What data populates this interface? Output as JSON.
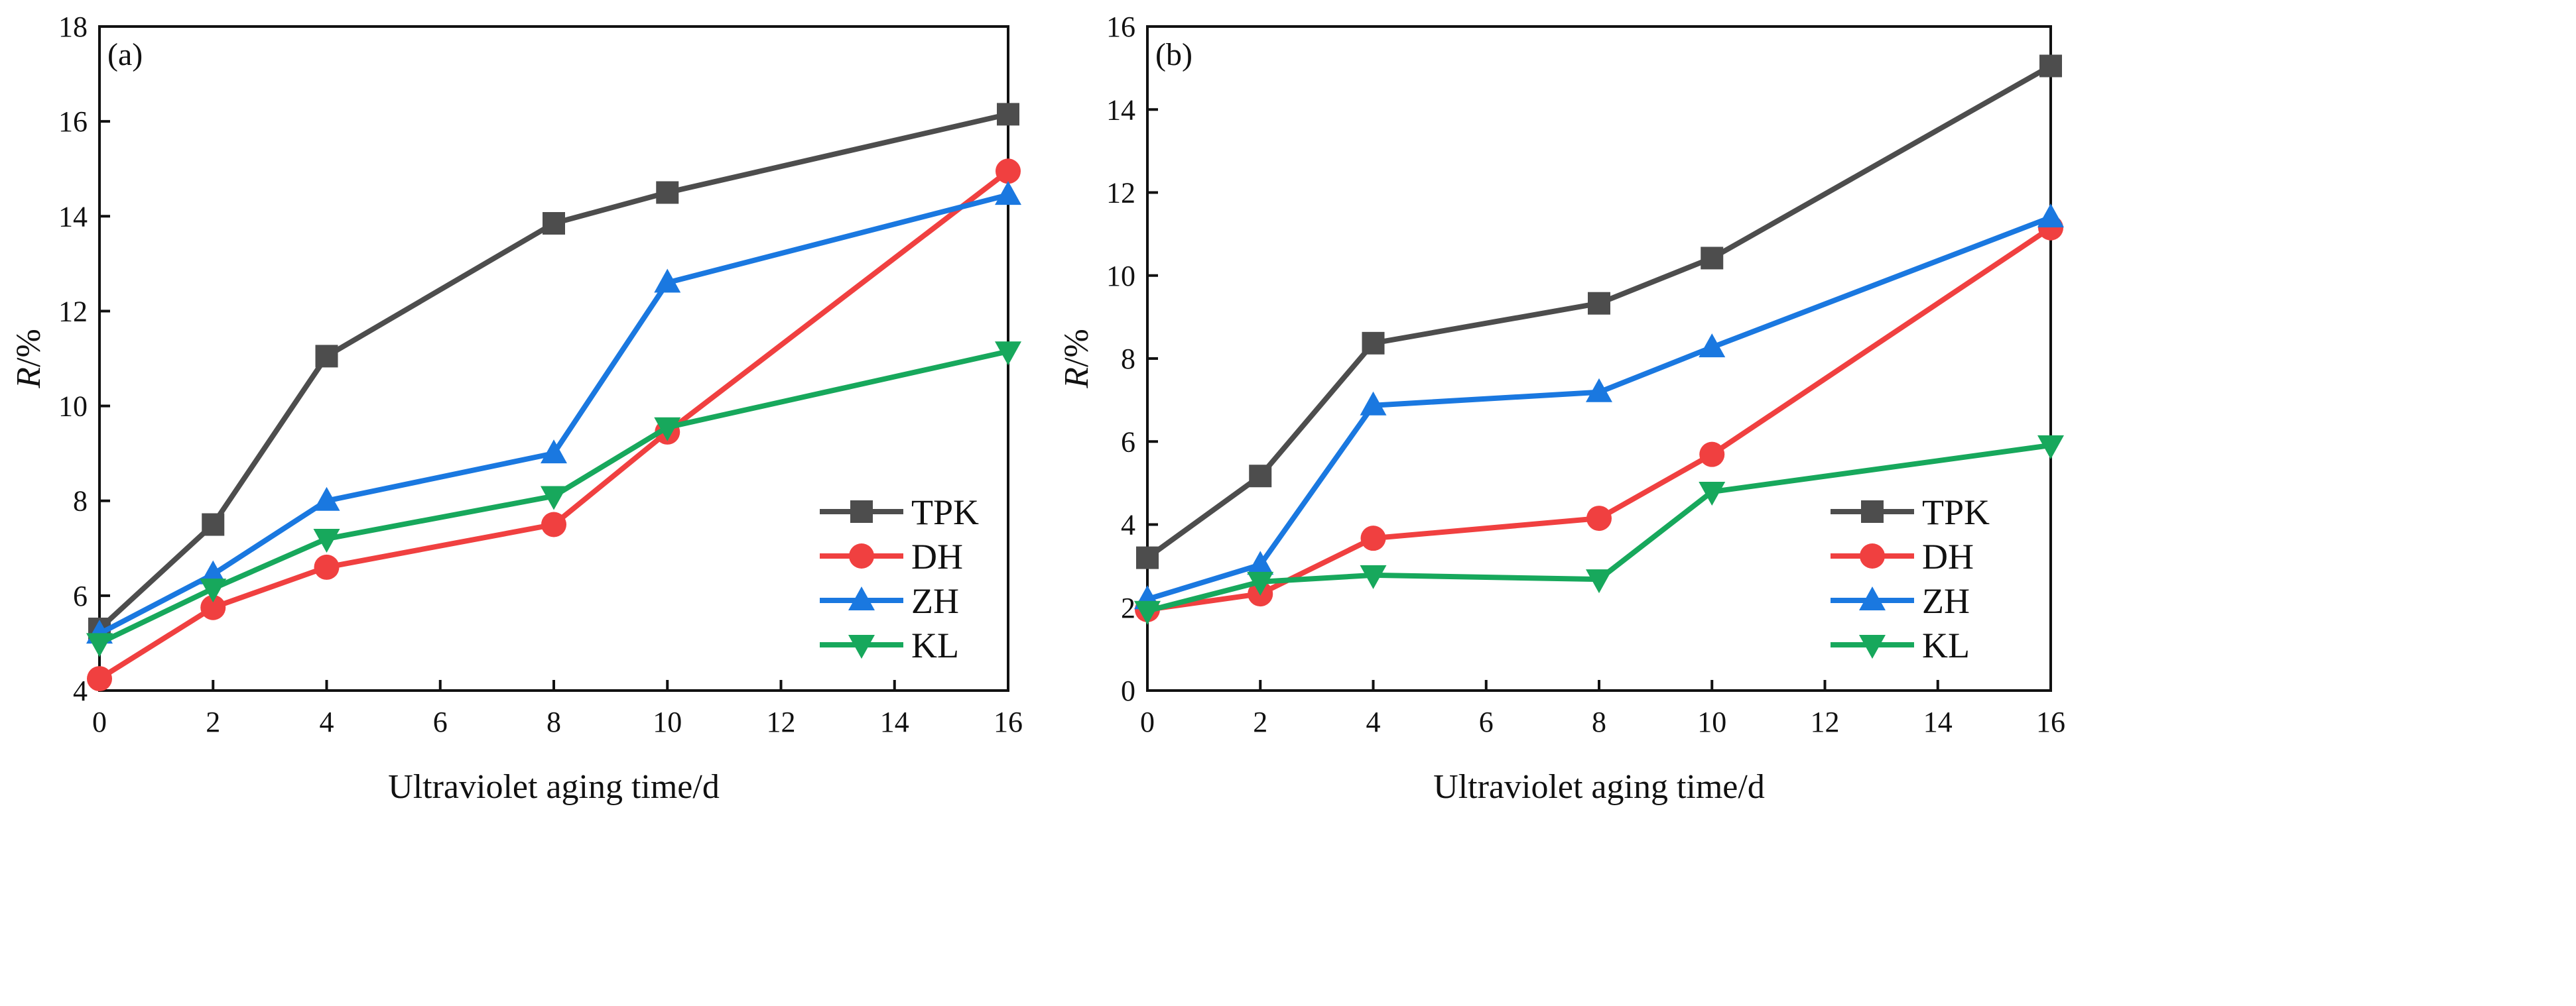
{
  "chart_data": [
    {
      "type": "line",
      "panel_label": "(a)",
      "xlabel": "Ultraviolet aging time/d",
      "ylabel_italic": "R",
      "ylabel_rest": "/%",
      "xlim": [
        0,
        16
      ],
      "ylim": [
        4,
        18
      ],
      "xticks": [
        0,
        2,
        4,
        6,
        8,
        10,
        12,
        14,
        16
      ],
      "yticks": [
        4,
        6,
        8,
        10,
        12,
        14,
        16,
        18
      ],
      "x": [
        0,
        2,
        4,
        8,
        10,
        16
      ],
      "legend_position": "bottom-right",
      "series": [
        {
          "name": "TPK",
          "color": "#4d4d4d",
          "marker": "square",
          "values": [
            5.3,
            7.5,
            11.05,
            13.85,
            14.5,
            16.15
          ]
        },
        {
          "name": "DH",
          "color": "#f04040",
          "marker": "circle",
          "values": [
            4.25,
            5.75,
            6.6,
            7.5,
            9.45,
            14.95
          ]
        },
        {
          "name": "ZH",
          "color": "#1a78e0",
          "marker": "triangle-up",
          "values": [
            5.2,
            6.45,
            8.0,
            9.0,
            12.6,
            14.45
          ]
        },
        {
          "name": "KL",
          "color": "#17a85c",
          "marker": "triangle-down",
          "values": [
            5.0,
            6.15,
            7.2,
            8.1,
            9.55,
            11.15
          ]
        }
      ]
    },
    {
      "type": "line",
      "panel_label": "(b)",
      "xlabel": "Ultraviolet aging time/d",
      "ylabel_italic": "R",
      "ylabel_rest": "/%",
      "xlim": [
        0,
        16
      ],
      "ylim": [
        0,
        16
      ],
      "xticks": [
        0,
        2,
        4,
        6,
        8,
        10,
        12,
        14,
        16
      ],
      "yticks": [
        0,
        2,
        4,
        6,
        8,
        10,
        12,
        14,
        16
      ],
      "x": [
        0,
        2,
        4,
        8,
        10,
        16
      ],
      "legend_position": "bottom-right",
      "series": [
        {
          "name": "TPK",
          "color": "#4d4d4d",
          "marker": "square",
          "values": [
            3.2,
            5.17,
            8.37,
            9.33,
            10.42,
            15.05
          ]
        },
        {
          "name": "DH",
          "color": "#f04040",
          "marker": "circle",
          "values": [
            1.95,
            2.33,
            3.67,
            4.15,
            5.69,
            11.15
          ]
        },
        {
          "name": "ZH",
          "color": "#1a78e0",
          "marker": "triangle-up",
          "values": [
            2.2,
            3.03,
            6.87,
            7.19,
            8.27,
            11.4
          ]
        },
        {
          "name": "KL",
          "color": "#17a85c",
          "marker": "triangle-down",
          "values": [
            1.92,
            2.62,
            2.78,
            2.68,
            4.79,
            5.91
          ]
        }
      ]
    }
  ]
}
